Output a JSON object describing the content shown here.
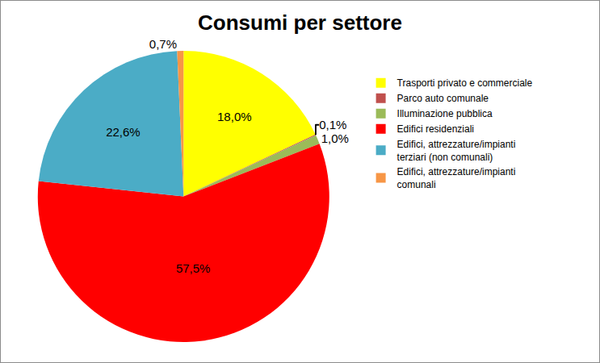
{
  "chart_data": {
    "type": "pie",
    "title": "Consumi per settore",
    "categories": [
      "Trasporti privato e commerciale",
      "Parco auto comunale",
      "Illuminazione pubblica",
      "Edifici residenziali",
      "Edifici, attrezzature/impianti terziari (non comunali)",
      "Edifici, attrezzature/impianti comunali"
    ],
    "values": [
      18.0,
      0.1,
      1.0,
      57.5,
      22.6,
      0.7
    ],
    "value_labels": [
      "18,0%",
      "0,1%",
      "1,0%",
      "57,5%",
      "22,6%",
      "0,7%"
    ],
    "colors": [
      "#FFFF00",
      "#C0504D",
      "#9BBB59",
      "#FF0000",
      "#4BACC6",
      "#F79646"
    ],
    "data_labels": true,
    "legend": "right"
  }
}
